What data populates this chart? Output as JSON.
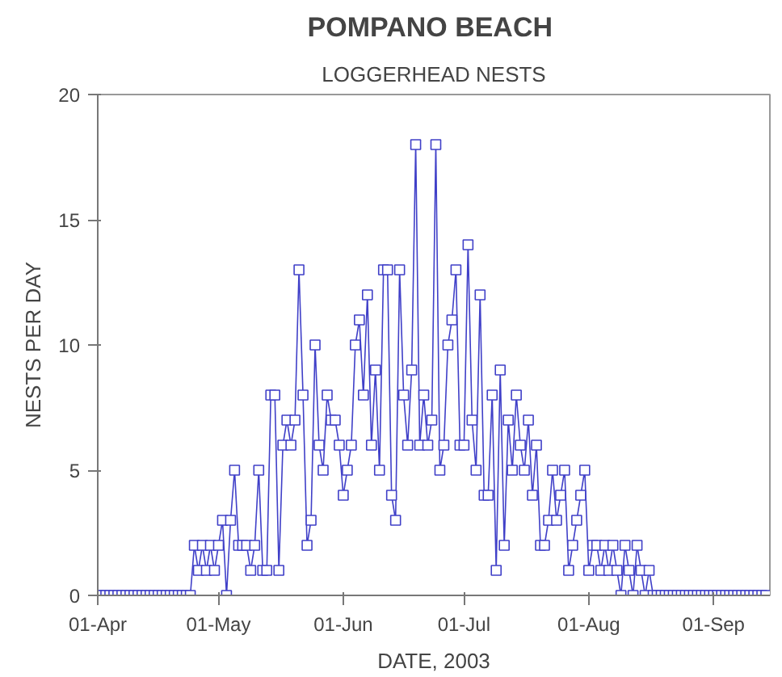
{
  "chart_data": {
    "type": "line",
    "title": "POMPANO  BEACH",
    "subtitle": "LOGGERHEAD NESTS",
    "xlabel": "DATE, 2003",
    "ylabel": "NESTS PER DAY",
    "xlim": [
      "2003-04-01",
      "2003-09-15"
    ],
    "xticks": [
      {
        "value": "2003-04-01",
        "label": "01-Apr"
      },
      {
        "value": "2003-05-01",
        "label": "01-May"
      },
      {
        "value": "2003-06-01",
        "label": "01-Jun"
      },
      {
        "value": "2003-07-01",
        "label": "01-Jul"
      },
      {
        "value": "2003-08-01",
        "label": "01-Aug"
      },
      {
        "value": "2003-09-01",
        "label": "01-Sep"
      }
    ],
    "ylim": [
      0,
      20
    ],
    "yticks": [
      0,
      5,
      10,
      15,
      20
    ],
    "grid": false,
    "marker": "square",
    "line_style": "solid",
    "series": [
      {
        "color": "#4040c8",
        "x": [
          "2003-04-01",
          "2003-04-02",
          "2003-04-03",
          "2003-04-04",
          "2003-04-05",
          "2003-04-06",
          "2003-04-07",
          "2003-04-08",
          "2003-04-09",
          "2003-04-10",
          "2003-04-11",
          "2003-04-12",
          "2003-04-13",
          "2003-04-14",
          "2003-04-15",
          "2003-04-16",
          "2003-04-17",
          "2003-04-18",
          "2003-04-19",
          "2003-04-20",
          "2003-04-21",
          "2003-04-22",
          "2003-04-23",
          "2003-04-24",
          "2003-04-25",
          "2003-04-26",
          "2003-04-27",
          "2003-04-28",
          "2003-04-29",
          "2003-04-30",
          "2003-05-01",
          "2003-05-02",
          "2003-05-03",
          "2003-05-04",
          "2003-05-05",
          "2003-05-06",
          "2003-05-07",
          "2003-05-08",
          "2003-05-09",
          "2003-05-10",
          "2003-05-11",
          "2003-05-12",
          "2003-05-13",
          "2003-05-14",
          "2003-05-15",
          "2003-05-16",
          "2003-05-17",
          "2003-05-18",
          "2003-05-19",
          "2003-05-20",
          "2003-05-21",
          "2003-05-22",
          "2003-05-23",
          "2003-05-24",
          "2003-05-25",
          "2003-05-26",
          "2003-05-27",
          "2003-05-28",
          "2003-05-29",
          "2003-05-30",
          "2003-05-31",
          "2003-06-01",
          "2003-06-02",
          "2003-06-03",
          "2003-06-04",
          "2003-06-05",
          "2003-06-06",
          "2003-06-07",
          "2003-06-08",
          "2003-06-09",
          "2003-06-10",
          "2003-06-11",
          "2003-06-12",
          "2003-06-13",
          "2003-06-14",
          "2003-06-15",
          "2003-06-16",
          "2003-06-17",
          "2003-06-18",
          "2003-06-19",
          "2003-06-20",
          "2003-06-21",
          "2003-06-22",
          "2003-06-23",
          "2003-06-24",
          "2003-06-25",
          "2003-06-26",
          "2003-06-27",
          "2003-06-28",
          "2003-06-29",
          "2003-06-30",
          "2003-07-01",
          "2003-07-02",
          "2003-07-03",
          "2003-07-04",
          "2003-07-05",
          "2003-07-06",
          "2003-07-07",
          "2003-07-08",
          "2003-07-09",
          "2003-07-10",
          "2003-07-11",
          "2003-07-12",
          "2003-07-13",
          "2003-07-14",
          "2003-07-15",
          "2003-07-16",
          "2003-07-17",
          "2003-07-18",
          "2003-07-19",
          "2003-07-20",
          "2003-07-21",
          "2003-07-22",
          "2003-07-23",
          "2003-07-24",
          "2003-07-25",
          "2003-07-26",
          "2003-07-27",
          "2003-07-28",
          "2003-07-29",
          "2003-07-30",
          "2003-07-31",
          "2003-08-01",
          "2003-08-02",
          "2003-08-03",
          "2003-08-04",
          "2003-08-05",
          "2003-08-06",
          "2003-08-07",
          "2003-08-08",
          "2003-08-09",
          "2003-08-10",
          "2003-08-11",
          "2003-08-12",
          "2003-08-13",
          "2003-08-14",
          "2003-08-15",
          "2003-08-16",
          "2003-08-17",
          "2003-08-18",
          "2003-08-19",
          "2003-08-20",
          "2003-08-21",
          "2003-08-22",
          "2003-08-23",
          "2003-08-24",
          "2003-08-25",
          "2003-08-26",
          "2003-08-27",
          "2003-08-28",
          "2003-08-29",
          "2003-08-30",
          "2003-08-31",
          "2003-09-01",
          "2003-09-02",
          "2003-09-03",
          "2003-09-04",
          "2003-09-05",
          "2003-09-06",
          "2003-09-07",
          "2003-09-08",
          "2003-09-09",
          "2003-09-10",
          "2003-09-11",
          "2003-09-12",
          "2003-09-13",
          "2003-09-14"
        ],
        "values": [
          0,
          0,
          0,
          0,
          0,
          0,
          0,
          0,
          0,
          0,
          0,
          0,
          0,
          0,
          0,
          0,
          0,
          0,
          0,
          0,
          0,
          0,
          0,
          0,
          2,
          1,
          2,
          1,
          2,
          1,
          2,
          3,
          0,
          3,
          5,
          2,
          2,
          2,
          1,
          2,
          5,
          1,
          1,
          8,
          8,
          1,
          6,
          7,
          6,
          7,
          13,
          8,
          2,
          3,
          10,
          6,
          5,
          8,
          7,
          7,
          6,
          4,
          5,
          6,
          10,
          11,
          8,
          12,
          6,
          9,
          5,
          13,
          13,
          4,
          3,
          13,
          8,
          6,
          9,
          18,
          6,
          8,
          6,
          7,
          18,
          5,
          6,
          10,
          11,
          13,
          6,
          6,
          14,
          7,
          5,
          12,
          4,
          4,
          8,
          1,
          9,
          2,
          7,
          5,
          8,
          6,
          5,
          7,
          4,
          6,
          2,
          2,
          3,
          5,
          3,
          4,
          5,
          1,
          2,
          3,
          4,
          5,
          1,
          2,
          2,
          1,
          2,
          1,
          2,
          1,
          0,
          2,
          1,
          0,
          2,
          1,
          0,
          1,
          0,
          0,
          0,
          0,
          0,
          0,
          0,
          0,
          0,
          0,
          0,
          0,
          0,
          0,
          0,
          0,
          0,
          0,
          0,
          0,
          0,
          0,
          0,
          0,
          0,
          0,
          0,
          0,
          0
        ]
      }
    ]
  }
}
